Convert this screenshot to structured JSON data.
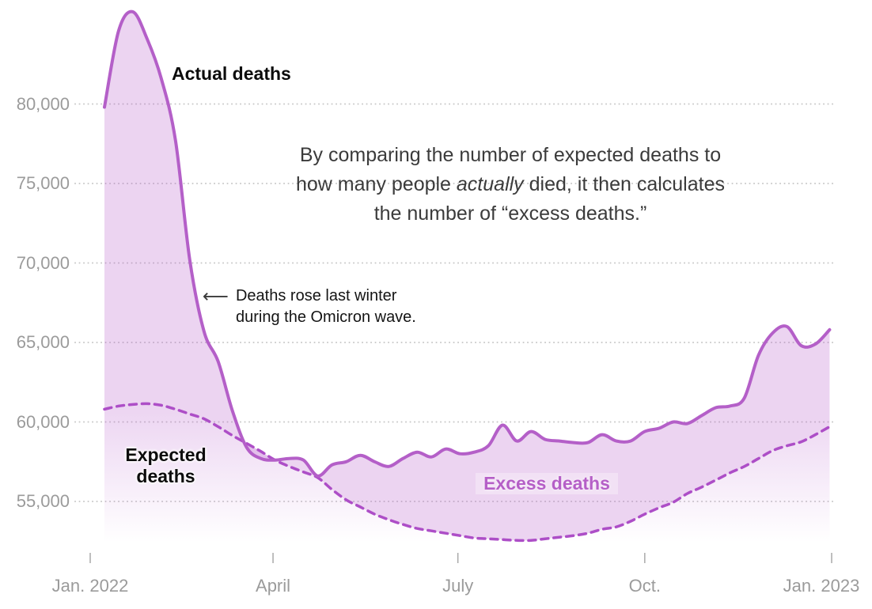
{
  "chart_data": {
    "type": "area",
    "x_axis": {
      "unit": "day of year (2022)",
      "ticks": [
        {
          "day": 0,
          "label": "Jan. 2022"
        },
        {
          "day": 90,
          "label": "April"
        },
        {
          "day": 181,
          "label": "July"
        },
        {
          "day": 273,
          "label": "Oct."
        },
        {
          "day": 365,
          "label": "Jan. 2023"
        }
      ]
    },
    "y_axis": {
      "unit": "deaths per week",
      "ticks": [
        {
          "value": 80000,
          "label": "80,000"
        },
        {
          "value": 75000,
          "label": "75,000"
        },
        {
          "value": 70000,
          "label": "70,000"
        },
        {
          "value": 65000,
          "label": "65,000"
        },
        {
          "value": 60000,
          "label": "60,000"
        },
        {
          "value": 55000,
          "label": "55,000"
        }
      ]
    },
    "series": [
      {
        "name": "Actual deaths",
        "line_style": "solid",
        "days": [
          7,
          14,
          21,
          28,
          35,
          42,
          49,
          56,
          63,
          70,
          77,
          84,
          91,
          98,
          105,
          112,
          119,
          126,
          133,
          140,
          147,
          154,
          161,
          168,
          175,
          182,
          189,
          196,
          203,
          210,
          217,
          224,
          231,
          238,
          245,
          252,
          259,
          266,
          273,
          280,
          287,
          294,
          301,
          308,
          315,
          322,
          329,
          336,
          343,
          350,
          357,
          364
        ],
        "values": [
          79800,
          84600,
          85800,
          84100,
          81600,
          77700,
          70200,
          65700,
          63800,
          60700,
          58400,
          57700,
          57600,
          57700,
          57600,
          56600,
          57300,
          57500,
          57900,
          57500,
          57200,
          57700,
          58100,
          57800,
          58300,
          58000,
          58100,
          58500,
          59800,
          58800,
          59400,
          58900,
          58800,
          58700,
          58700,
          59200,
          58800,
          58800,
          59400,
          59600,
          60000,
          59900,
          60400,
          60900,
          61000,
          61500,
          64200,
          65600,
          66000,
          64800,
          64900,
          65800
        ]
      },
      {
        "name": "Expected deaths",
        "line_style": "dashed",
        "days": [
          7,
          14,
          21,
          28,
          35,
          42,
          49,
          56,
          63,
          70,
          77,
          84,
          91,
          98,
          105,
          112,
          119,
          126,
          133,
          140,
          147,
          154,
          161,
          168,
          175,
          182,
          189,
          196,
          203,
          210,
          217,
          224,
          231,
          238,
          245,
          252,
          259,
          266,
          273,
          280,
          287,
          294,
          301,
          308,
          315,
          322,
          329,
          336,
          343,
          350,
          357,
          364
        ],
        "values": [
          60800,
          61000,
          61100,
          61150,
          61050,
          60800,
          60500,
          60200,
          59700,
          59150,
          58650,
          58150,
          57600,
          57200,
          56850,
          56500,
          55750,
          55100,
          54650,
          54200,
          53850,
          53550,
          53300,
          53150,
          53000,
          52850,
          52700,
          52650,
          52600,
          52550,
          52550,
          52650,
          52750,
          52850,
          53000,
          53250,
          53400,
          53750,
          54200,
          54600,
          54950,
          55500,
          55900,
          56350,
          56800,
          57200,
          57700,
          58200,
          58500,
          58750,
          59200,
          59700
        ]
      }
    ],
    "annotations": {
      "actual_label": "Actual deaths",
      "expected_label": "Expected deaths",
      "excess_label": "Excess deaths",
      "callout": {
        "arrow": "⟵",
        "line1": "Deaths rose last winter",
        "line2": "during the Omicron wave."
      },
      "explainer": {
        "line1": "By comparing the number of expected deaths to",
        "line2_pre": "how many people ",
        "line2_italic": "actually",
        "line2_post": " died, it then calculates",
        "line3": "the number of “excess deaths.”"
      }
    },
    "colors": {
      "actual_line": "#b45fc8",
      "expected_line": "#ad4ec7",
      "excess_fill": "rgba(184,95,205,0.27)",
      "fill_rgb": "184,95,205",
      "gridline": "#c9c9c9",
      "tick": "#a9a9a9",
      "axis_text": "#9b9b9b",
      "excess_label_text": "#b55fc7"
    }
  }
}
